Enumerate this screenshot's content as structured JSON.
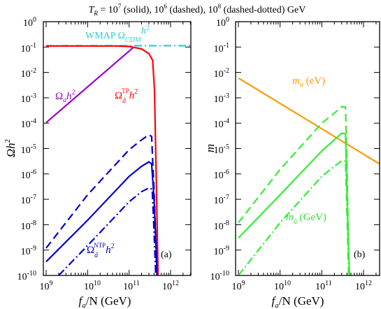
{
  "title": {
    "prefix": "T",
    "prefix_sub": "R",
    "text": " = 10",
    "e1": "7",
    "t1": " (solid), 10",
    "e2": "6",
    "t2": " (dashed), 10",
    "e3": "8",
    "t3": " (dashed-dotted) GeV"
  },
  "chart_data": [
    {
      "type": "line",
      "panel_label": "(a)",
      "xscale": "log",
      "yscale": "log",
      "xlim": [
        1000000000.0,
        5000000000000.0
      ],
      "ylim": [
        1e-10,
        1
      ],
      "xlabel": {
        "main": "f",
        "sub": "a",
        "rest": "/N (GeV)"
      },
      "ylabel": {
        "main": "Ωh",
        "sup": "2"
      },
      "x_ticks": [
        {
          "base": "10",
          "exp": "9"
        },
        {
          "base": "10",
          "exp": "10"
        },
        {
          "base": "10",
          "exp": "11"
        },
        {
          "base": "10",
          "exp": "12"
        }
      ],
      "y_ticks": [
        {
          "base": "10",
          "exp": "0"
        },
        {
          "base": "10",
          "exp": "-1"
        },
        {
          "base": "10",
          "exp": "-2"
        },
        {
          "base": "10",
          "exp": "-3"
        },
        {
          "base": "10",
          "exp": "-4"
        },
        {
          "base": "10",
          "exp": "-5"
        },
        {
          "base": "10",
          "exp": "-6"
        },
        {
          "base": "10",
          "exp": "-7"
        },
        {
          "base": "10",
          "exp": "-8"
        },
        {
          "base": "10",
          "exp": "-9"
        },
        {
          "base": "10",
          "exp": "-10"
        }
      ],
      "annotations": [
        {
          "id": "wmap",
          "text": "WMAP Ω",
          "sub": "CDM",
          "sup": "h",
          "sup2": "2",
          "color": "#33cccc"
        },
        {
          "id": "omega-a",
          "text": "Ω",
          "sub": "a",
          "sup": "h",
          "sup2": "2",
          "color": "#9900cc"
        },
        {
          "id": "omega-tp",
          "text": "Ω",
          "sub": "ã",
          "sup_top": "TP",
          "rest": "h",
          "sup2": "2",
          "color": "#ff0000"
        },
        {
          "id": "omega-ntp",
          "text": "Ω",
          "sub": "ã",
          "sup_top": "NTP",
          "rest": "h",
          "sup2": "2",
          "color": "#0000cc"
        }
      ],
      "series": [
        {
          "id": "wmap-band",
          "color": "#33cccc",
          "style": "dash-dot",
          "points": [
            [
              1000000000.0,
              0.113
            ],
            [
              5000000000000.0,
              0.113
            ]
          ]
        },
        {
          "id": "omega-a",
          "color": "#9900cc",
          "style": "solid",
          "points": [
            [
              1000000000.0,
              0.000105
            ],
            [
              130000000000.0,
              0.1
            ]
          ]
        },
        {
          "id": "omega-tp-1e7",
          "color": "#ff0000",
          "style": "solid",
          "points": [
            [
              1000000000.0,
              0.11
            ],
            [
              50000000000.0,
              0.11
            ],
            [
              100000000000.0,
              0.105
            ],
            [
              200000000000.0,
              0.085
            ],
            [
              300000000000.0,
              0.055
            ],
            [
              370000000000.0,
              0.03
            ],
            [
              410000000000.0,
              0.002
            ],
            [
              450000000000.0,
              1e-06
            ],
            [
              500000000000.0,
              1e-10
            ]
          ]
        },
        {
          "id": "omega-ntp-1e7",
          "color": "#0000cc",
          "style": "solid",
          "points": [
            [
              1000000000.0,
              3.5e-10
            ],
            [
              10000000000.0,
              1.5e-08
            ],
            [
              100000000000.0,
              8e-07
            ],
            [
              200000000000.0,
              2e-06
            ],
            [
              300000000000.0,
              3e-06
            ],
            [
              350000000000.0,
              2.5e-06
            ],
            [
              400000000000.0,
              1e-07
            ],
            [
              450000000000.0,
              1e-09
            ],
            [
              470000000000.0,
              1e-10
            ]
          ]
        },
        {
          "id": "omega-ntp-1e6",
          "color": "#0000cc",
          "style": "dashed",
          "points": [
            [
              1000000000.0,
              1.2e-09
            ],
            [
              10000000000.0,
              1.5e-07
            ],
            [
              100000000000.0,
              9e-06
            ],
            [
              200000000000.0,
              2.2e-05
            ],
            [
              300000000000.0,
              3.5e-05
            ],
            [
              350000000000.0,
              3e-05
            ],
            [
              400000000000.0,
              2e-07
            ],
            [
              450000000000.0,
              1e-09
            ],
            [
              460000000000.0,
              1e-10
            ]
          ]
        },
        {
          "id": "omega-ntp-1e8",
          "color": "#0000cc",
          "style": "dash-dot",
          "points": [
            [
              2000000000.0,
              1e-10
            ],
            [
              10000000000.0,
              1.5e-09
            ],
            [
              100000000000.0,
              8e-08
            ],
            [
              200000000000.0,
              2e-07
            ],
            [
              300000000000.0,
              2.8e-07
            ],
            [
              360000000000.0,
              2.5e-07
            ],
            [
              400000000000.0,
              5e-09
            ],
            [
              440000000000.0,
              1e-10
            ]
          ]
        }
      ]
    },
    {
      "type": "line",
      "panel_label": "(b)",
      "xscale": "log",
      "yscale": "log",
      "xlim": [
        1000000000.0,
        5000000000000.0
      ],
      "ylim": [
        1e-10,
        1
      ],
      "xlabel": {
        "main": "f",
        "sub": "a",
        "rest": "/N (GeV)"
      },
      "ylabel": {
        "main": "m"
      },
      "x_ticks": [
        {
          "base": "10",
          "exp": "9"
        },
        {
          "base": "10",
          "exp": "10"
        },
        {
          "base": "10",
          "exp": "11"
        },
        {
          "base": "10",
          "exp": "12"
        }
      ],
      "y_ticks": [
        {
          "base": "10",
          "exp": "0"
        },
        {
          "base": "10",
          "exp": "-1"
        },
        {
          "base": "10",
          "exp": "-2"
        },
        {
          "base": "10",
          "exp": "-3"
        },
        {
          "base": "10",
          "exp": "-4"
        },
        {
          "base": "10",
          "exp": "-5"
        },
        {
          "base": "10",
          "exp": "-6"
        },
        {
          "base": "10",
          "exp": "-7"
        },
        {
          "base": "10",
          "exp": "-8"
        },
        {
          "base": "10",
          "exp": "-9"
        },
        {
          "base": "10",
          "exp": "-10"
        }
      ],
      "annotations": [
        {
          "id": "m-a",
          "text": "m",
          "sub": "a",
          "rest": " (eV)",
          "color": "#ff9900"
        },
        {
          "id": "m-atilde",
          "text": "m",
          "sub": "ã",
          "rest": " (GeV)",
          "color": "#33dd33"
        }
      ],
      "series": [
        {
          "id": "m-a-line",
          "color": "#ff9900",
          "style": "solid",
          "points": [
            [
              1000000000.0,
              0.006
            ],
            [
              5000000000000.0,
              1.2e-06
            ]
          ]
        },
        {
          "id": "m-atilde-1e7",
          "color": "#33ee33",
          "style": "solid",
          "points": [
            [
              1000000000.0,
              3e-09
            ],
            [
              10000000000.0,
              1.5e-07
            ],
            [
              100000000000.0,
              8e-06
            ],
            [
              200000000000.0,
              2.2e-05
            ],
            [
              300000000000.0,
              4e-05
            ],
            [
              370000000000.0,
              3.8e-05
            ],
            [
              400000000000.0,
              2e-07
            ],
            [
              440000000000.0,
              1e-09
            ],
            [
              460000000000.0,
              1e-10
            ]
          ]
        },
        {
          "id": "m-atilde-1e6",
          "color": "#33ee33",
          "style": "dashed",
          "points": [
            [
              1000000000.0,
              1.2e-08
            ],
            [
              10000000000.0,
              1.5e-06
            ],
            [
              100000000000.0,
              0.0001
            ],
            [
              200000000000.0,
              0.00025
            ],
            [
              300000000000.0,
              0.00045
            ],
            [
              370000000000.0,
              0.00043
            ],
            [
              400000000000.0,
              2e-06
            ],
            [
              440000000000.0,
              1e-09
            ],
            [
              460000000000.0,
              1e-10
            ]
          ]
        },
        {
          "id": "m-atilde-1e8",
          "color": "#33ee33",
          "style": "dash-dot",
          "points": [
            [
              1000000000.0,
              1e-10
            ],
            [
              10000000000.0,
              1.2e-08
            ],
            [
              100000000000.0,
              8e-07
            ],
            [
              200000000000.0,
              2e-06
            ],
            [
              300000000000.0,
              3.3e-06
            ],
            [
              370000000000.0,
              3.2e-06
            ],
            [
              400000000000.0,
              3e-08
            ],
            [
              440000000000.0,
              1e-10
            ]
          ]
        }
      ]
    }
  ]
}
